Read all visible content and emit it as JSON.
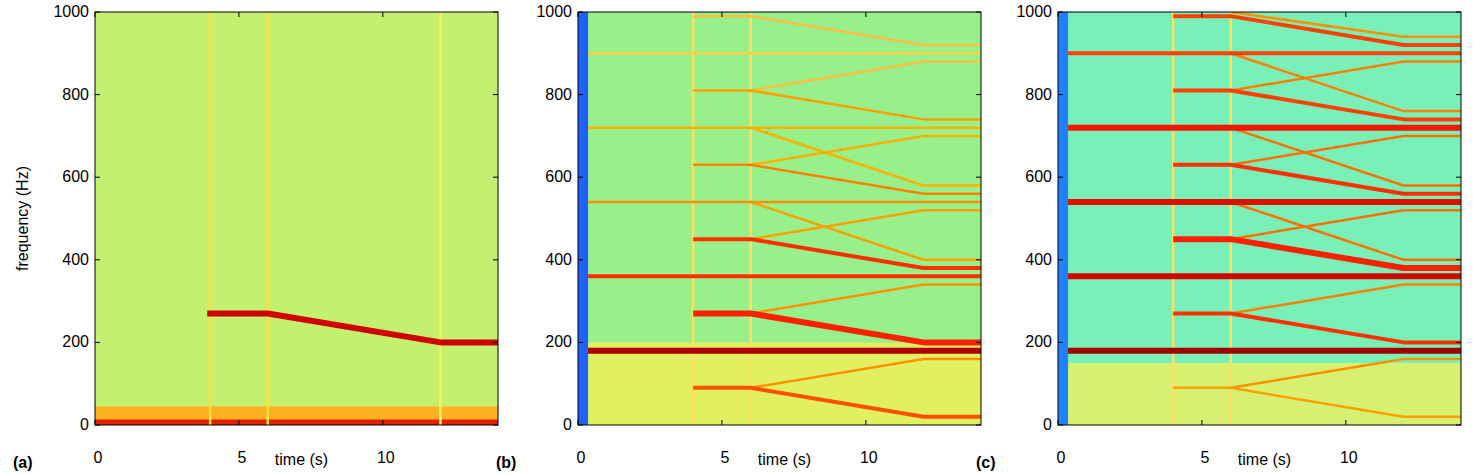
{
  "chart_data": [
    {
      "type": "line",
      "label": "(a)",
      "x_label": "time (s)",
      "y_label": "frequency (Hz)",
      "color": "#c4f070",
      "xlim": [
        0,
        14
      ],
      "xticks": [
        0,
        5,
        10
      ],
      "ylim": [
        0,
        1000
      ],
      "yticks": [
        0,
        200,
        400,
        600,
        800,
        1000
      ],
      "series": [
        {
          "type": "area",
          "color": "#ffb020",
          "x": [
            0,
            14
          ],
          "values": [
            45,
            45
          ]
        },
        {
          "color": "#e02000",
          "line_style": "heavy",
          "x": [
            0,
            14
          ],
          "values": [
            6,
            6
          ]
        },
        {
          "color": "#ffe040",
          "line_style": "light",
          "x": [
            4,
            4
          ],
          "values": [
            0,
            1000
          ]
        },
        {
          "color": "#ffe040",
          "line_style": "light",
          "x": [
            6,
            6
          ],
          "values": [
            0,
            1000
          ]
        },
        {
          "color": "#f0f060",
          "line_style": "light",
          "x": [
            12,
            12
          ],
          "values": [
            0,
            1000
          ]
        },
        {
          "color": "#d00000",
          "line_style": "heavy",
          "x": [
            3.9,
            6,
            12,
            14
          ],
          "values": [
            270,
            270,
            200,
            200
          ]
        }
      ]
    },
    {
      "type": "line",
      "label": "(b)",
      "x_label": "time (s)",
      "color": "#98f08a",
      "xlim": [
        0,
        14
      ],
      "xticks": [
        0,
        5,
        10
      ],
      "ylim": [
        0,
        1000
      ],
      "yticks": [
        0,
        200,
        400,
        600,
        800,
        1000
      ],
      "series": [
        {
          "type": "area",
          "color": "#e0f060",
          "x": [
            0.35,
            14
          ],
          "values": [
            200,
            200
          ]
        },
        {
          "type": "area",
          "color": "#2060ff",
          "x": [
            0,
            0.35
          ],
          "values": [
            1000,
            1000
          ]
        },
        {
          "color": "#ffe060",
          "line_style": "light",
          "x": [
            4,
            4
          ],
          "values": [
            0,
            1000
          ]
        },
        {
          "color": "#ffe060",
          "line_style": "light",
          "x": [
            6,
            6
          ],
          "values": [
            0,
            1000
          ]
        },
        {
          "color": "#ff9000",
          "line_style": "light",
          "x": [
            6,
            12,
            14
          ],
          "values": [
            90,
            160,
            160
          ]
        },
        {
          "color": "#ff9000",
          "line_style": "light",
          "x": [
            6,
            12,
            14
          ],
          "values": [
            270,
            340,
            340
          ]
        },
        {
          "color": "#ffa000",
          "line_style": "light",
          "x": [
            6,
            12,
            14
          ],
          "values": [
            450,
            520,
            520
          ]
        },
        {
          "color": "#ffb000",
          "line_style": "light",
          "x": [
            6,
            12,
            14
          ],
          "values": [
            630,
            700,
            700
          ]
        },
        {
          "color": "#ffc040",
          "line_style": "light",
          "x": [
            6,
            12,
            14
          ],
          "values": [
            810,
            880,
            880
          ]
        },
        {
          "color": "#ffa000",
          "line_style": "light",
          "x": [
            6,
            12,
            14
          ],
          "values": [
            540,
            400,
            400
          ]
        },
        {
          "color": "#ffb000",
          "line_style": "light",
          "x": [
            6,
            12,
            14
          ],
          "values": [
            720,
            580,
            580
          ]
        },
        {
          "color": "#ffd040",
          "line_style": "light",
          "x": [
            0.35,
            14
          ],
          "values": [
            900,
            900
          ]
        },
        {
          "color": "#ffb000",
          "line_style": "light",
          "x": [
            0.35,
            14
          ],
          "values": [
            720,
            720
          ]
        },
        {
          "color": "#ff9000",
          "line_style": "light",
          "x": [
            0.35,
            14
          ],
          "values": [
            540,
            540
          ]
        },
        {
          "color": "#ffc040",
          "line_style": "light",
          "x": [
            4,
            6,
            12,
            14
          ],
          "values": [
            990,
            990,
            920,
            920
          ]
        },
        {
          "color": "#ffa000",
          "line_style": "light",
          "x": [
            4,
            6,
            12,
            14
          ],
          "values": [
            810,
            810,
            740,
            740
          ]
        },
        {
          "color": "#ff8000",
          "line_style": "light",
          "x": [
            4,
            6,
            12,
            14
          ],
          "values": [
            630,
            630,
            560,
            560
          ]
        },
        {
          "color": "#ff5000",
          "line_style": "solid",
          "x": [
            4,
            6,
            12,
            14
          ],
          "values": [
            90,
            90,
            20,
            20
          ]
        },
        {
          "color": "#ff3000",
          "line_style": "solid",
          "x": [
            4,
            6,
            12,
            14
          ],
          "values": [
            450,
            450,
            380,
            380
          ]
        },
        {
          "color": "#ff2000",
          "line_style": "heavy",
          "x": [
            4,
            6,
            12,
            14
          ],
          "values": [
            270,
            270,
            200,
            200
          ]
        },
        {
          "color": "#ff3000",
          "line_style": "solid",
          "x": [
            0.35,
            14
          ],
          "values": [
            360,
            360
          ]
        },
        {
          "color": "#b00000",
          "line_style": "heavy",
          "x": [
            0.35,
            14
          ],
          "values": [
            180,
            180
          ]
        }
      ]
    },
    {
      "type": "line",
      "label": "(c)",
      "x_label": "time (s)",
      "color": "#78f0b8",
      "xlim": [
        0,
        14
      ],
      "xticks": [
        0,
        5,
        10
      ],
      "ylim": [
        0,
        1000
      ],
      "yticks": [
        0,
        200,
        400,
        600,
        800,
        1000
      ],
      "series": [
        {
          "type": "area",
          "color": "#d8f070",
          "x": [
            0.35,
            14
          ],
          "values": [
            150,
            150
          ]
        },
        {
          "type": "area",
          "color": "#2080ff",
          "x": [
            0,
            0.35
          ],
          "values": [
            1000,
            1000
          ]
        },
        {
          "color": "#ffe060",
          "line_style": "light",
          "x": [
            4,
            4
          ],
          "values": [
            0,
            1000
          ]
        },
        {
          "color": "#ffe060",
          "line_style": "light",
          "x": [
            6,
            6
          ],
          "values": [
            0,
            1000
          ]
        },
        {
          "color": "#ff9000",
          "line_style": "light",
          "x": [
            6,
            12,
            14
          ],
          "values": [
            90,
            160,
            160
          ]
        },
        {
          "color": "#ff8000",
          "line_style": "light",
          "x": [
            6,
            12,
            14
          ],
          "values": [
            270,
            340,
            340
          ]
        },
        {
          "color": "#ff7000",
          "line_style": "light",
          "x": [
            6,
            12,
            14
          ],
          "values": [
            450,
            520,
            520
          ]
        },
        {
          "color": "#ff7000",
          "line_style": "light",
          "x": [
            6,
            12,
            14
          ],
          "values": [
            630,
            700,
            700
          ]
        },
        {
          "color": "#ff8000",
          "line_style": "light",
          "x": [
            6,
            12,
            14
          ],
          "values": [
            810,
            880,
            880
          ]
        },
        {
          "color": "#ff7000",
          "line_style": "light",
          "x": [
            6,
            12,
            14
          ],
          "values": [
            540,
            400,
            400
          ]
        },
        {
          "color": "#ff7000",
          "line_style": "light",
          "x": [
            6,
            12,
            14
          ],
          "values": [
            720,
            580,
            580
          ]
        },
        {
          "color": "#ff8000",
          "line_style": "light",
          "x": [
            6,
            12,
            14
          ],
          "values": [
            900,
            760,
            760
          ]
        },
        {
          "color": "#ff9000",
          "line_style": "light",
          "x": [
            6,
            12,
            14
          ],
          "values": [
            1000,
            940,
            940
          ]
        },
        {
          "color": "#ff4000",
          "line_style": "solid",
          "x": [
            4,
            6,
            12,
            14
          ],
          "values": [
            990,
            990,
            920,
            920
          ]
        },
        {
          "color": "#ff4000",
          "line_style": "solid",
          "x": [
            4,
            6,
            12,
            14
          ],
          "values": [
            810,
            810,
            740,
            740
          ]
        },
        {
          "color": "#ff3000",
          "line_style": "solid",
          "x": [
            4,
            6,
            12,
            14
          ],
          "values": [
            630,
            630,
            560,
            560
          ]
        },
        {
          "color": "#ffa000",
          "line_style": "light",
          "x": [
            4,
            6,
            12,
            14
          ],
          "values": [
            90,
            90,
            20,
            20
          ]
        },
        {
          "color": "#ff2000",
          "line_style": "heavy",
          "x": [
            4,
            6,
            12,
            14
          ],
          "values": [
            450,
            450,
            380,
            380
          ]
        },
        {
          "color": "#ff3000",
          "line_style": "solid",
          "x": [
            4,
            6,
            12,
            14
          ],
          "values": [
            270,
            270,
            200,
            200
          ]
        },
        {
          "color": "#ff4000",
          "line_style": "solid",
          "x": [
            0.35,
            14
          ],
          "values": [
            900,
            900
          ]
        },
        {
          "color": "#f01800",
          "line_style": "heavy",
          "x": [
            0.35,
            14
          ],
          "values": [
            720,
            720
          ]
        },
        {
          "color": "#e01000",
          "line_style": "heavy",
          "x": [
            0.35,
            14
          ],
          "values": [
            540,
            540
          ]
        },
        {
          "color": "#d00800",
          "line_style": "heavy",
          "x": [
            0.35,
            14
          ],
          "values": [
            360,
            360
          ]
        },
        {
          "color": "#a00000",
          "line_style": "heavy",
          "x": [
            0.35,
            14
          ],
          "values": [
            180,
            180
          ]
        }
      ]
    }
  ]
}
